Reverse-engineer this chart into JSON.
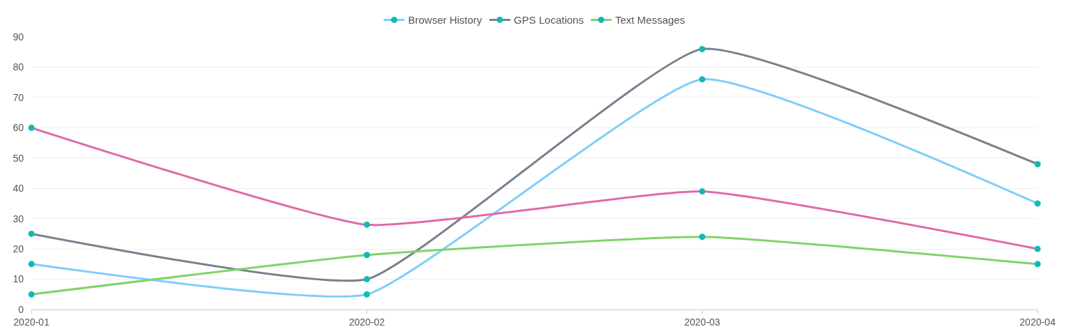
{
  "chart_data": {
    "type": "line",
    "categories": [
      "2020-01",
      "2020-02",
      "2020-03",
      "2020-04"
    ],
    "series": [
      {
        "name": "Browser History",
        "color": "#7fcdfb",
        "colors": [
          "#13b8b8",
          "#13b8b8",
          "#13b8b8",
          "#13b8b8"
        ],
        "values": [
          15,
          5,
          76,
          35
        ]
      },
      {
        "name": "GPS Locations",
        "color": "#77818d",
        "colors": [
          "#13b8b8",
          "#13b8b8",
          "#13b8b8",
          "#13b8b8"
        ],
        "values": [
          25,
          10,
          86,
          48
        ]
      },
      {
        "name": "Text Messages",
        "color": "#80d36a",
        "colors": [
          "#13b8b8",
          "#13b8b8",
          "#13b8b8",
          "#13b8b8"
        ],
        "values": [
          5,
          18,
          24,
          15
        ]
      },
      {
        "color": "#e06aa6",
        "colors": [
          "#13b8b8",
          "#13b8b8",
          "#13b8b8",
          "#13b8b8"
        ],
        "values": [
          60,
          28,
          39,
          20
        ]
      }
    ],
    "ylim": [
      0,
      90
    ],
    "yticks": [
      0,
      10,
      20,
      30,
      40,
      50,
      60,
      70,
      80,
      90
    ],
    "grid": "y",
    "legend": "top",
    "marker": "circle",
    "line_style": "solid"
  }
}
